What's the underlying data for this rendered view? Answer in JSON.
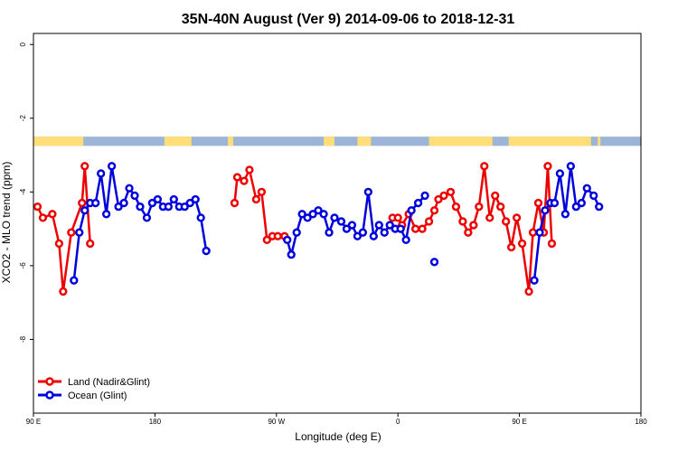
{
  "chart_data": {
    "type": "line",
    "title": "35N-40N August (Ver 9)   2014-09-06 to 2018-12-31",
    "xlabel": "Longitude (deg E)",
    "ylabel": "XCO2 - MLO trend (ppm)",
    "xlim": [
      90,
      540
    ],
    "ylim": [
      -10,
      0.3
    ],
    "x_ticks": [
      {
        "value": 90,
        "label": "90 E"
      },
      {
        "value": 180,
        "label": "180"
      },
      {
        "value": 270,
        "label": "90 W"
      },
      {
        "value": 360,
        "label": "0"
      },
      {
        "value": 450,
        "label": "90 E"
      },
      {
        "value": 540,
        "label": "180"
      }
    ],
    "y_ticks": [
      {
        "value": 0,
        "label": "0"
      },
      {
        "value": -2,
        "label": "-2"
      },
      {
        "value": -4,
        "label": "-4"
      },
      {
        "value": -6,
        "label": "-6"
      },
      {
        "value": -8,
        "label": "-8"
      }
    ],
    "grid": false,
    "legend_position": "bottom-left",
    "land_ocean_strip": {
      "y_range": [
        -2.75,
        -2.5
      ],
      "land_color": "#ffdd77",
      "ocean_color": "#9bb4d8",
      "land_segmentsprompt": [
        [
          90,
          127
        ],
        [
          187,
          207
        ],
        [
          234,
          238
        ],
        [
          305,
          313
        ],
        [
          330,
          340
        ],
        [
          383,
          430
        ],
        [
          442,
          503
        ],
        [
          508,
          510
        ]
      ],
      "land_segments": [
        [
          90,
          127
        ],
        [
          187,
          207
        ],
        [
          234,
          238
        ],
        [
          305,
          313
        ],
        [
          330,
          340
        ],
        [
          383,
          430
        ],
        [
          442,
          503
        ],
        [
          508,
          510
        ]
      ]
    },
    "series": [
      {
        "name": "Land (Nadir&Glint)",
        "color": "#ee0000",
        "segments": [
          [
            [
              93,
              -4.4
            ],
            [
              97,
              -4.7
            ],
            [
              104,
              -4.6
            ],
            [
              109,
              -5.4
            ],
            [
              112,
              -6.7
            ],
            [
              118,
              -5.1
            ],
            [
              126,
              -4.3
            ],
            [
              128,
              -3.3
            ],
            [
              132,
              -5.4
            ]
          ],
          [
            [
              239,
              -4.3
            ],
            [
              241,
              -3.6
            ],
            [
              246,
              -3.7
            ],
            [
              250,
              -3.4
            ],
            [
              255,
              -4.2
            ],
            [
              259,
              -4.0
            ],
            [
              263,
              -5.3
            ],
            [
              267,
              -5.2
            ],
            [
              271,
              -5.2
            ],
            [
              276,
              -5.2
            ]
          ],
          [
            [
              356,
              -4.7
            ],
            [
              360,
              -4.7
            ],
            [
              363,
              -4.9
            ],
            [
              368,
              -4.6
            ],
            [
              373,
              -5.0
            ],
            [
              378,
              -5.0
            ],
            [
              383,
              -4.8
            ],
            [
              387,
              -4.5
            ],
            [
              390,
              -4.2
            ],
            [
              394,
              -4.1
            ],
            [
              399,
              -4.0
            ],
            [
              403,
              -4.4
            ],
            [
              408,
              -4.8
            ],
            [
              412,
              -5.1
            ],
            [
              416,
              -4.9
            ],
            [
              420,
              -4.4
            ],
            [
              424,
              -3.3
            ],
            [
              428,
              -4.7
            ],
            [
              432,
              -4.1
            ],
            [
              436,
              -4.4
            ],
            [
              440,
              -4.8
            ],
            [
              444,
              -5.5
            ],
            [
              448,
              -4.7
            ],
            [
              452,
              -5.4
            ],
            [
              457,
              -6.7
            ],
            [
              460,
              -5.1
            ],
            [
              464,
              -4.3
            ],
            [
              468,
              -5.1
            ],
            [
              471,
              -3.3
            ],
            [
              474,
              -5.4
            ]
          ]
        ]
      },
      {
        "name": "Ocean (Glint)",
        "color": "#0000dd",
        "segments": [
          [
            [
              120,
              -6.4
            ],
            [
              124,
              -5.1
            ],
            [
              128,
              -4.5
            ],
            [
              132,
              -4.3
            ],
            [
              136,
              -4.3
            ],
            [
              140,
              -3.5
            ],
            [
              144,
              -4.6
            ],
            [
              148,
              -3.3
            ],
            [
              153,
              -4.4
            ],
            [
              157,
              -4.3
            ],
            [
              161,
              -3.9
            ],
            [
              165,
              -4.1
            ],
            [
              169,
              -4.4
            ],
            [
              174,
              -4.7
            ],
            [
              178,
              -4.3
            ],
            [
              182,
              -4.2
            ],
            [
              186,
              -4.4
            ],
            [
              190,
              -4.4
            ],
            [
              194,
              -4.2
            ],
            [
              198,
              -4.4
            ],
            [
              202,
              -4.4
            ],
            [
              206,
              -4.3
            ],
            [
              210,
              -4.2
            ],
            [
              214,
              -4.7
            ],
            [
              218,
              -5.6
            ]
          ],
          [
            [
              278,
              -5.3
            ],
            [
              281,
              -5.7
            ],
            [
              285,
              -5.1
            ],
            [
              289,
              -4.6
            ],
            [
              293,
              -4.7
            ],
            [
              297,
              -4.6
            ],
            [
              301,
              -4.5
            ],
            [
              305,
              -4.6
            ],
            [
              309,
              -5.1
            ],
            [
              313,
              -4.7
            ],
            [
              318,
              -4.8
            ],
            [
              322,
              -5.0
            ],
            [
              326,
              -4.9
            ],
            [
              330,
              -5.2
            ],
            [
              334,
              -5.1
            ],
            [
              338,
              -4.0
            ],
            [
              342,
              -5.2
            ],
            [
              346,
              -4.9
            ],
            [
              350,
              -5.1
            ],
            [
              354,
              -4.9
            ],
            [
              358,
              -5.0
            ],
            [
              362,
              -5.0
            ],
            [
              366,
              -5.3
            ],
            [
              370,
              -4.5
            ],
            [
              375,
              -4.3
            ],
            [
              380,
              -4.1
            ]
          ],
          [
            [
              387,
              -5.9
            ]
          ],
          [
            [
              461,
              -6.4
            ],
            [
              465,
              -5.1
            ],
            [
              469,
              -4.5
            ],
            [
              473,
              -4.3
            ],
            [
              476,
              -4.3
            ],
            [
              480,
              -3.5
            ],
            [
              484,
              -4.6
            ],
            [
              488,
              -3.3
            ],
            [
              492,
              -4.4
            ],
            [
              496,
              -4.3
            ],
            [
              500,
              -3.9
            ],
            [
              505,
              -4.1
            ],
            [
              509,
              -4.4
            ]
          ]
        ]
      }
    ]
  }
}
